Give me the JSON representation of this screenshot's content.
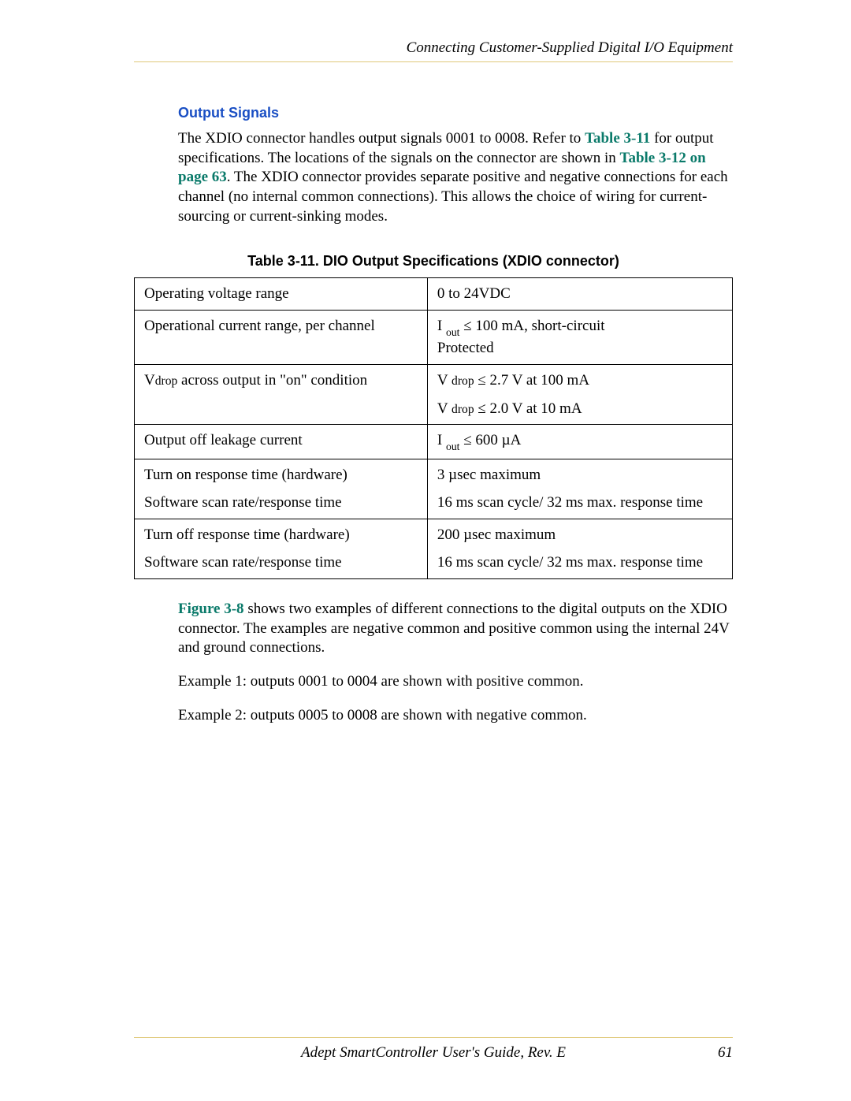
{
  "header": {
    "title": "Connecting Customer-Supplied Digital I/O Equipment"
  },
  "section": {
    "heading": "Output Signals",
    "para1_pre": "The XDIO connector handles output signals 0001 to 0008. Refer to ",
    "xref1": "Table 3-11",
    "para1_mid": " for output specifications. The locations of the signals on the connector are shown in ",
    "xref2": "Table 3-12 on page 63",
    "para1_post": ". The XDIO connector provides separate positive and negative connections for each channel (no internal common connections). This allows the choice of wiring for current-sourcing or current-sinking modes."
  },
  "table": {
    "caption": "Table 3-11. DIO Output Specifications (XDIO connector)",
    "rows": [
      {
        "left": [
          {
            "type": "plain",
            "text": "Operating voltage range"
          }
        ],
        "right": [
          {
            "type": "plain",
            "text": "0 to 24VDC"
          }
        ]
      },
      {
        "left": [
          {
            "type": "plain",
            "text": "Operational current range, per channel"
          }
        ],
        "right": [
          {
            "type": "expr",
            "prefix": "I",
            "sub": "out",
            "le": true,
            "rest": "100 mA, short-circuit"
          },
          {
            "type": "plain",
            "text": "Protected"
          }
        ]
      },
      {
        "left": [
          {
            "type": "vdrop",
            "text": " across output in \"on\" condition"
          }
        ],
        "right": [
          {
            "type": "expr",
            "prefix": "V",
            "small": "drop",
            "le": true,
            "rest": "2.7 V at 100 mA"
          },
          {
            "type": "gap"
          },
          {
            "type": "expr",
            "prefix": "V",
            "small": "drop",
            "le": true,
            "rest": "2.0 V at 10 mA"
          }
        ]
      },
      {
        "left": [
          {
            "type": "plain",
            "text": "Output off leakage current"
          }
        ],
        "right": [
          {
            "type": "expr",
            "prefix": "I",
            "sub": "out",
            "le": true,
            "rest": "600 µA"
          }
        ]
      },
      {
        "left": [
          {
            "type": "plain",
            "text": "Turn on response time (hardware)"
          },
          {
            "type": "gap"
          },
          {
            "type": "plain",
            "text": "Software scan rate/response time"
          }
        ],
        "right": [
          {
            "type": "plain",
            "text": "3 µsec maximum"
          },
          {
            "type": "gap"
          },
          {
            "type": "plain",
            "text": "16 ms scan cycle/ 32 ms max. response time"
          }
        ]
      },
      {
        "left": [
          {
            "type": "plain",
            "text": "Turn off response time (hardware)"
          },
          {
            "type": "gap"
          },
          {
            "type": "plain",
            "text": "Software scan rate/response time"
          }
        ],
        "right": [
          {
            "type": "plain",
            "text": "200 µsec maximum"
          },
          {
            "type": "gap"
          },
          {
            "type": "plain",
            "text": "16 ms scan cycle/ 32 ms max. response time"
          }
        ]
      }
    ]
  },
  "after_table": {
    "xref3": "Figure 3-8",
    "para2_post": " shows two examples of different connections to the digital outputs on the XDIO connector. The examples are negative common and positive common using the internal 24V and ground connections.",
    "example1": "Example 1: outputs 0001 to 0004 are shown with positive common.",
    "example2": "Example 2: outputs 0005 to 0008 are shown with negative common."
  },
  "footer": {
    "title": "Adept SmartController User's Guide, Rev. E",
    "page": "61"
  },
  "style": {
    "xref_color": "#0a7a6a",
    "heading_color": "#1a4fc4",
    "rule_color": "#e0c97a",
    "body_font": "Palatino",
    "heading_font": "Arial"
  }
}
